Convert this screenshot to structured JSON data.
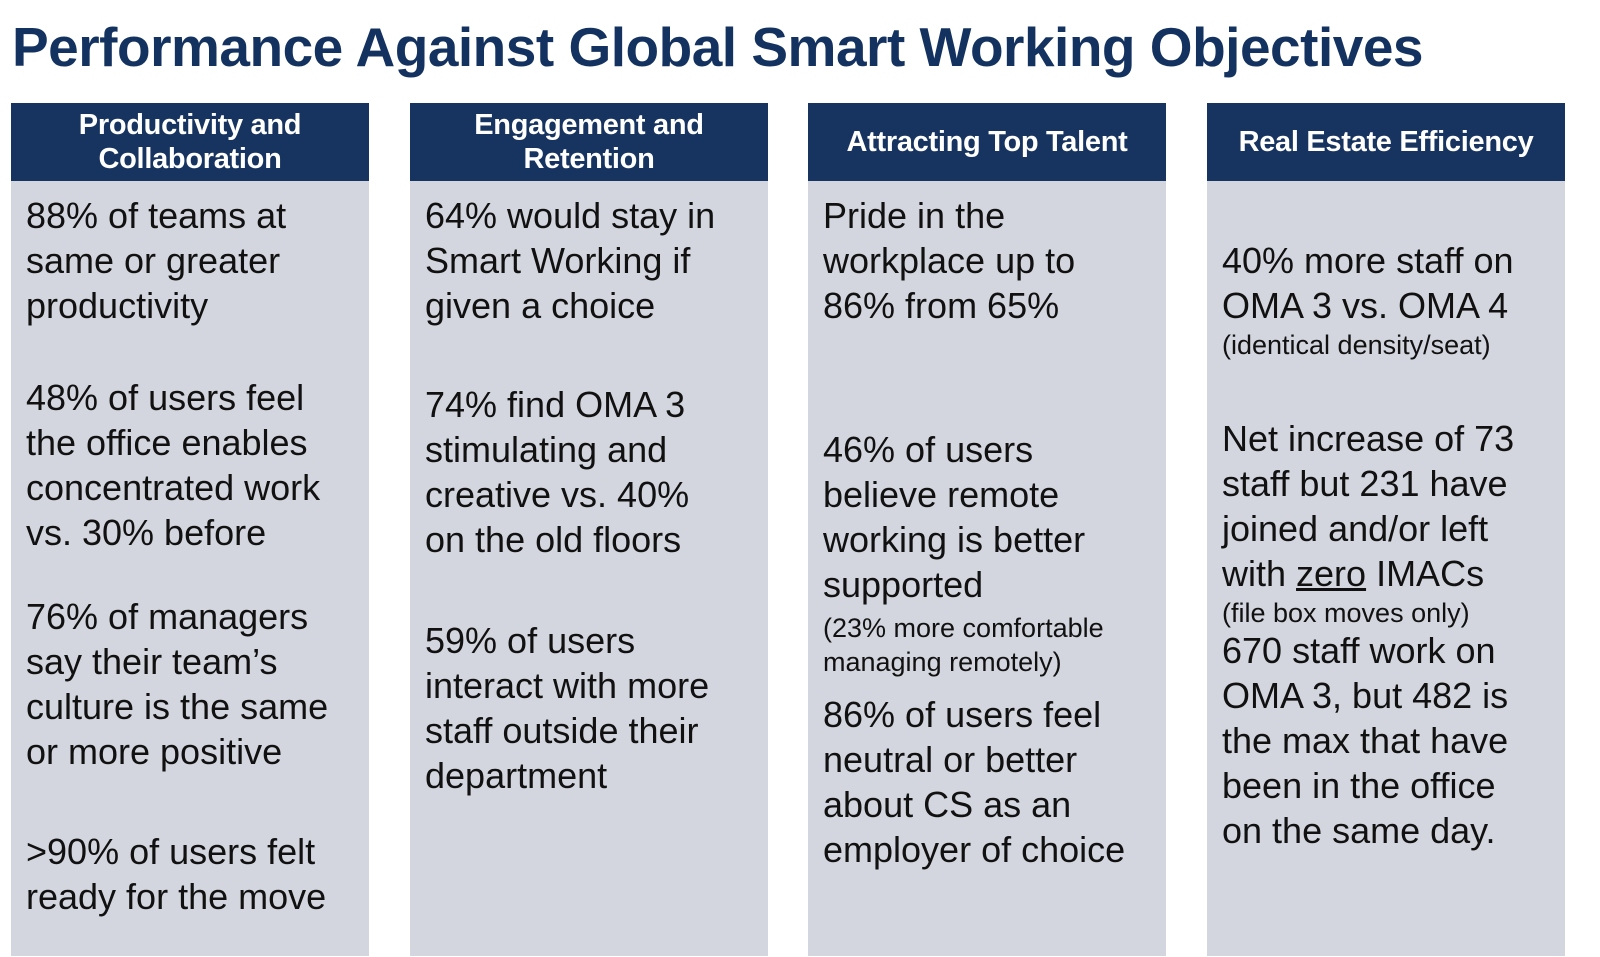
{
  "title": "Performance Against Global Smart Working Objectives",
  "columns": [
    {
      "header": "Productivity and\nCollaboration",
      "stats": [
        {
          "text": "88% of teams at\nsame or greater\nproductivity"
        },
        {
          "text": "48% of users feel\nthe office enables\nconcentrated work\nvs. 30% before"
        },
        {
          "text": "76% of managers\nsay their team’s\nculture is the same\nor more positive"
        },
        {
          "text": ">90% of users felt\nready for the move"
        }
      ]
    },
    {
      "header": "Engagement and\nRetention",
      "stats": [
        {
          "text": "64% would stay in\nSmart Working if\ngiven a choice"
        },
        {
          "text": "74% find OMA 3\nstimulating and\ncreative vs. 40%\non the old floors"
        },
        {
          "text": "59% of users\ninteract with more\nstaff outside their\ndepartment"
        }
      ]
    },
    {
      "header": "Attracting Top Talent",
      "stats": [
        {
          "text": "Pride in the\nworkplace up to\n86% from 65%"
        },
        {
          "text": "46% of users\nbelieve remote\nworking is better\nsupported",
          "note": "(23% more comfortable\nmanaging remotely)"
        },
        {
          "text": "86% of users feel\nneutral or better\nabout CS as an\nemployer of choice"
        }
      ]
    },
    {
      "header": "Real Estate Efficiency",
      "stats": [
        {
          "text": "40% more staff on\nOMA 3 vs. OMA 4",
          "note": "(identical density/seat)"
        },
        {
          "pre": "Net increase of 73\nstaff but 231 have\njoined and/or left\nwith ",
          "underlined": "zero",
          "post": " IMACs",
          "note": "(file box moves only)"
        },
        {
          "text": "670 staff work on\nOMA 3, but 482 is\nthe max that have\nbeen in the office\non the same day."
        }
      ]
    }
  ]
}
